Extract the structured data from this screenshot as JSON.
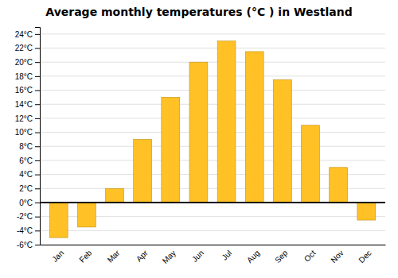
{
  "chart_data": {
    "type": "bar",
    "title": "Average monthly temperatures (°C ) in Westland",
    "categories": [
      "Jan",
      "Feb",
      "Mar",
      "Apr",
      "May",
      "Jun",
      "Jul",
      "Aug",
      "Sep",
      "Oct",
      "Nov",
      "Dec"
    ],
    "values": [
      -5,
      -3.5,
      2,
      9,
      15,
      20,
      23,
      21.5,
      17.5,
      11,
      5,
      -2.5
    ],
    "color": "#FFC125",
    "ylim": [
      -6,
      25
    ],
    "yticks": [
      {
        "value": -6,
        "label": "-6°C"
      },
      {
        "value": -4,
        "label": "-4°C"
      },
      {
        "value": -2,
        "label": "-2°C"
      },
      {
        "value": 0,
        "label": "0°C"
      },
      {
        "value": 2,
        "label": "2°C"
      },
      {
        "value": 4,
        "label": "4°C"
      },
      {
        "value": 6,
        "label": "6°C"
      },
      {
        "value": 8,
        "label": "8°C"
      },
      {
        "value": 10,
        "label": "10°C"
      },
      {
        "value": 12,
        "label": "12°C"
      },
      {
        "value": 14,
        "label": "14°C"
      },
      {
        "value": 16,
        "label": "16°C"
      },
      {
        "value": 18,
        "label": "18°C"
      },
      {
        "value": 20,
        "label": "20°C"
      },
      {
        "value": 22,
        "label": "22°C"
      },
      {
        "value": 24,
        "label": "24°C"
      }
    ],
    "grid": true
  }
}
